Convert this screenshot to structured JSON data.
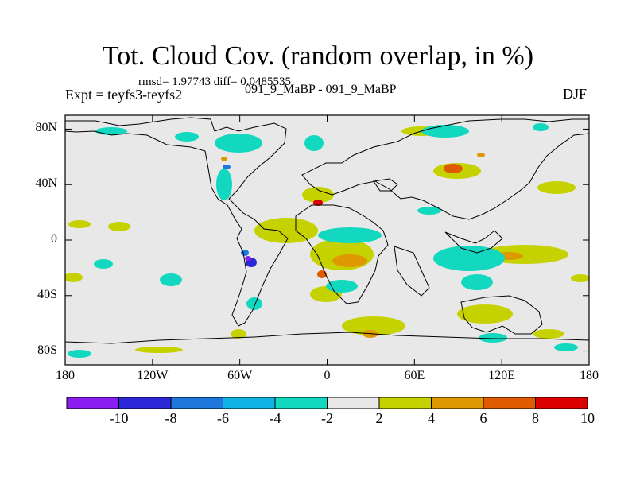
{
  "title": "Tot. Cloud Cov. (random overlap, in %)",
  "stats": "rmsd= 1.97743 diff= 0.0485535",
  "expt": "Expt = teyfs3-teyfs2",
  "period": "091_9_MaBP - 091_9_MaBP",
  "season": "DJF",
  "lat_labels": [
    "80N",
    "40N",
    "0",
    "40S",
    "80S"
  ],
  "lat_values": [
    80,
    40,
    0,
    -40,
    -80
  ],
  "lon_labels": [
    "180",
    "120W",
    "60W",
    "0",
    "60E",
    "120E",
    "180"
  ],
  "lon_values": [
    -180,
    -120,
    -60,
    0,
    60,
    120,
    180
  ],
  "colorbar": {
    "labels": [
      "-10",
      "-8",
      "-6",
      "-4",
      "-2",
      "2",
      "4",
      "6",
      "8",
      "10"
    ],
    "colors": [
      "#8a1df0",
      "#2d28d8",
      "#1e78dc",
      "#10b4e4",
      "#12d8c0",
      "#e8e8e8",
      "#c6d200",
      "#e09800",
      "#e05a00",
      "#dc0000"
    ]
  },
  "colors": {
    "background_field": "#e8e8e8",
    "coastline": "#000000"
  }
}
